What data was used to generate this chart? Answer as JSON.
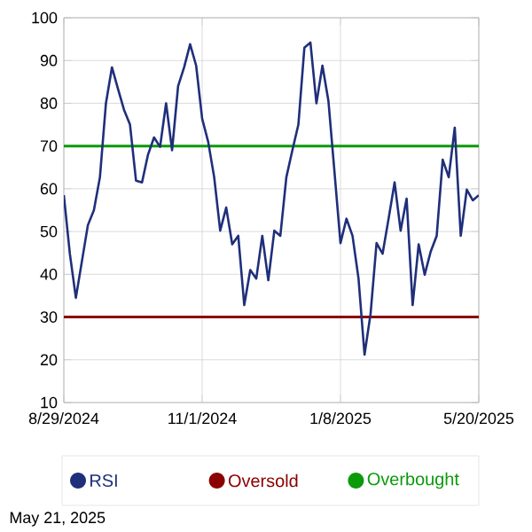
{
  "chart_data": {
    "type": "line",
    "categories": [
      "8/29/2024",
      null,
      null,
      null,
      null,
      null,
      null,
      null,
      null,
      null,
      null,
      null,
      null,
      null,
      null,
      null,
      null,
      null,
      null,
      null,
      null,
      null,
      null,
      "11/1/2024",
      null,
      null,
      null,
      null,
      null,
      null,
      null,
      null,
      null,
      null,
      null,
      null,
      null,
      null,
      null,
      null,
      null,
      null,
      null,
      null,
      null,
      null,
      "1/8/2025",
      null,
      null,
      null,
      null,
      null,
      null,
      null,
      null,
      null,
      null,
      null,
      null,
      null,
      null,
      null,
      null,
      null,
      null,
      null,
      null,
      null,
      null,
      "5/20/2025"
    ],
    "series": [
      {
        "name": "RSI",
        "color": "#1f2f7a",
        "values": [
          58.5,
          44.8,
          34.5,
          43,
          51.5,
          55,
          62.7,
          80,
          88.4,
          83.4,
          78.5,
          75,
          61.9,
          61.5,
          68,
          72,
          69.8,
          80,
          69,
          84,
          88.4,
          93.8,
          88.8,
          76.4,
          71,
          62.7,
          50.2,
          55.6,
          47,
          49,
          32.8,
          41,
          39,
          49,
          38.6,
          50.2,
          49,
          62.7,
          69,
          75,
          93,
          94.2,
          80,
          88.8,
          80.5,
          64,
          47.3,
          53,
          49,
          39,
          21.2,
          30.7,
          47.3,
          44.8,
          53,
          61.5,
          50.2,
          57.7,
          32.8,
          47,
          39.9,
          45.3,
          49,
          66.8,
          62.7,
          74.3,
          49,
          59.8,
          57.3,
          58.5
        ]
      }
    ],
    "ylim": [
      10,
      100
    ],
    "yticks": [
      10,
      20,
      30,
      40,
      50,
      60,
      70,
      80,
      90,
      100
    ],
    "ref_lines": [
      {
        "axis": "y",
        "value": 30,
        "label": "Oversold",
        "color": "#8b0000"
      },
      {
        "axis": "y",
        "value": 70,
        "label": "Overbought",
        "color": "#0a9a0a"
      }
    ],
    "grid": true,
    "legend": "bottom",
    "marker": "none",
    "line_style": "solid",
    "annotations": [
      "May 21, 2025"
    ]
  }
}
